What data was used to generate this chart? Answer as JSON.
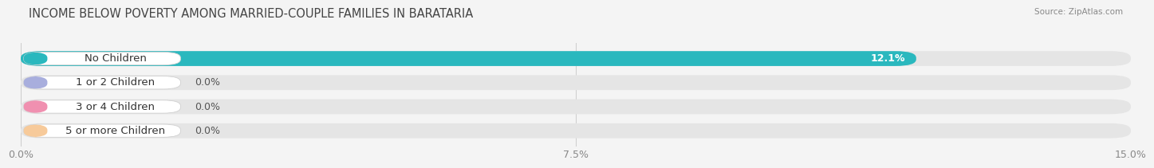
{
  "title": "INCOME BELOW POVERTY AMONG MARRIED-COUPLE FAMILIES IN BARATARIA",
  "source": "Source: ZipAtlas.com",
  "categories": [
    "No Children",
    "1 or 2 Children",
    "3 or 4 Children",
    "5 or more Children"
  ],
  "values": [
    12.1,
    0.0,
    0.0,
    0.0
  ],
  "bar_colors": [
    "#2ab8be",
    "#a8aedd",
    "#f090b0",
    "#f7ca9a"
  ],
  "xlim": [
    0,
    15.0
  ],
  "xticks": [
    0.0,
    7.5,
    15.0
  ],
  "xtick_labels": [
    "0.0%",
    "7.5%",
    "15.0%"
  ],
  "bar_height": 0.62,
  "background_color": "#f4f4f4",
  "bar_bg_color": "#e5e5e5",
  "title_fontsize": 10.5,
  "label_fontsize": 9.5,
  "value_fontsize": 9,
  "tick_fontsize": 9,
  "source_fontsize": 7.5
}
